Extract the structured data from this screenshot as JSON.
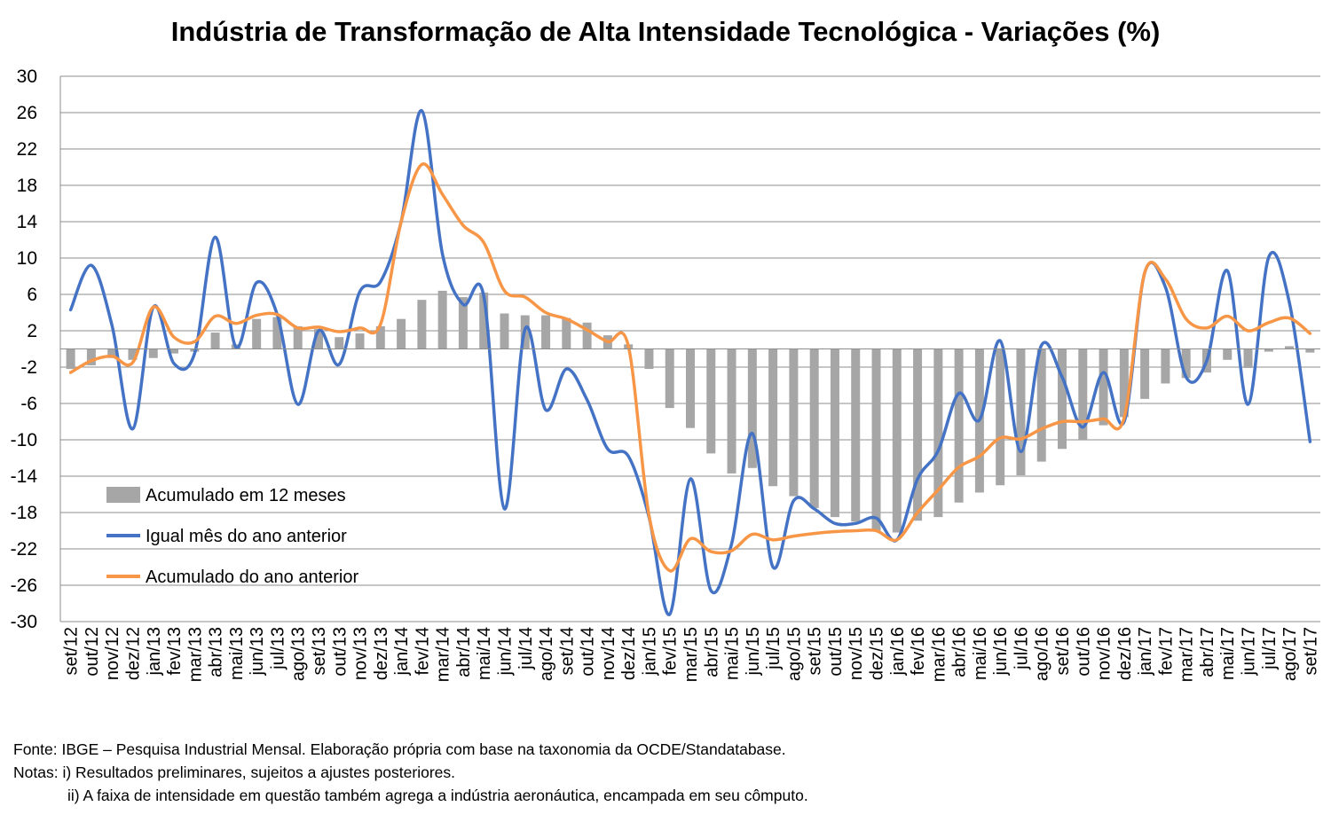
{
  "chart_data": {
    "type": "bar+line",
    "title": "Indústria de Transformação de Alta Intensidade Tecnológica - Variações (%)",
    "categories": [
      "set/12",
      "out/12",
      "nov/12",
      "dez/12",
      "jan/13",
      "fev/13",
      "mar/13",
      "abr/13",
      "mai/13",
      "jun/13",
      "jul/13",
      "ago/13",
      "set/13",
      "out/13",
      "nov/13",
      "dez/13",
      "jan/14",
      "fev/14",
      "mar/14",
      "abr/14",
      "mai/14",
      "jun/14",
      "jul/14",
      "ago/14",
      "set/14",
      "out/14",
      "nov/14",
      "dez/14",
      "jan/15",
      "fev/15",
      "mar/15",
      "abr/15",
      "mai/15",
      "jun/15",
      "jul/15",
      "ago/15",
      "set/15",
      "out/15",
      "nov/15",
      "dez/15",
      "jan/16",
      "fev/16",
      "mar/16",
      "abr/16",
      "mai/16",
      "jun/16",
      "jul/16",
      "ago/16",
      "set/16",
      "out/16",
      "nov/16",
      "dez/16",
      "jan/17",
      "fev/17",
      "mar/17",
      "abr/17",
      "mai/17",
      "jun/17",
      "jul/17",
      "ago/17",
      "set/17"
    ],
    "series": [
      {
        "name": "Acumulado em 12 meses",
        "kind": "bar",
        "color": "#a6a6a6",
        "values": [
          -2.2,
          -1.8,
          -1.0,
          -1.2,
          -1.0,
          -0.5,
          -0.3,
          1.8,
          0.5,
          3.3,
          3.5,
          2.5,
          2.2,
          1.3,
          1.7,
          2.5,
          3.3,
          5.4,
          6.4,
          5.7,
          6.2,
          3.9,
          3.7,
          3.7,
          3.4,
          2.9,
          1.5,
          0.5,
          -2.2,
          -6.5,
          -8.7,
          -11.5,
          -13.7,
          -13.1,
          -15.1,
          -16.2,
          -17.5,
          -18.5,
          -19.0,
          -20.0,
          -20.2,
          -18.9,
          -18.5,
          -16.9,
          -15.8,
          -15.0,
          -13.9,
          -12.4,
          -11.0,
          -10.0,
          -8.4,
          -7.5,
          -5.5,
          -3.8,
          -3.2,
          -2.6,
          -1.2,
          -2.1,
          -0.3,
          0.3,
          -0.4
        ]
      },
      {
        "name": "Igual mês do ano anterior",
        "kind": "line",
        "color": "#4472c4",
        "values": [
          4.3,
          9.2,
          2.6,
          -8.8,
          4.6,
          -1.6,
          -0.5,
          12.3,
          0.2,
          7.3,
          3.8,
          -6.1,
          2.0,
          -1.7,
          6.3,
          7.4,
          14.0,
          26.2,
          10.4,
          4.9,
          5.8,
          -17.6,
          2.2,
          -6.7,
          -2.2,
          -5.6,
          -11.0,
          -11.8,
          -18.5,
          -29.2,
          -14.3,
          -26.6,
          -21.4,
          -9.3,
          -24.0,
          -16.7,
          -17.6,
          -19.2,
          -19.2,
          -18.6,
          -21.0,
          -14.3,
          -11.2,
          -4.9,
          -7.8,
          0.9,
          -11.3,
          0.4,
          -3.1,
          -8.6,
          -2.6,
          -8.0,
          8.4,
          6.8,
          -3.1,
          -1.3,
          8.6,
          -6.1,
          10.1,
          5.1,
          -10.2
        ]
      },
      {
        "name": "Acumulado do ano anterior",
        "kind": "line",
        "color": "#f79646",
        "values": [
          -2.6,
          -1.3,
          -0.8,
          -1.5,
          4.6,
          1.3,
          0.8,
          3.6,
          2.8,
          3.7,
          3.8,
          2.3,
          2.4,
          1.9,
          2.3,
          2.7,
          14.0,
          20.3,
          17.0,
          13.6,
          11.7,
          6.4,
          5.7,
          4.0,
          3.3,
          2.1,
          0.8,
          0.3,
          -18.3,
          -24.4,
          -20.9,
          -22.3,
          -22.2,
          -20.4,
          -21.0,
          -20.6,
          -20.3,
          -20.1,
          -20.0,
          -20.0,
          -21.0,
          -18.0,
          -15.5,
          -13.0,
          -11.8,
          -9.8,
          -9.9,
          -8.8,
          -8.0,
          -8.0,
          -7.7,
          -7.6,
          8.4,
          7.7,
          3.3,
          2.3,
          3.6,
          2.0,
          2.9,
          3.4,
          1.7
        ]
      }
    ],
    "ylim": [
      -30,
      30
    ],
    "yticks": [
      30,
      26,
      22,
      18,
      14,
      10,
      6,
      2,
      -2,
      -6,
      -10,
      -14,
      -18,
      -22,
      -26,
      -30
    ],
    "grid": "horizontal",
    "legend_position": "lower-left"
  },
  "notes": {
    "source": "Fonte: IBGE – Pesquisa Industrial Mensal. Elaboração própria com base na taxonomia da OCDE/Standatabase.",
    "note1": "Notas: i) Resultados preliminares,  sujeitos a ajustes posteriores.",
    "note2": "ii) A faixa de intensidade em questão também agrega a indústria aeronáutica, encampada em seu cômputo."
  }
}
